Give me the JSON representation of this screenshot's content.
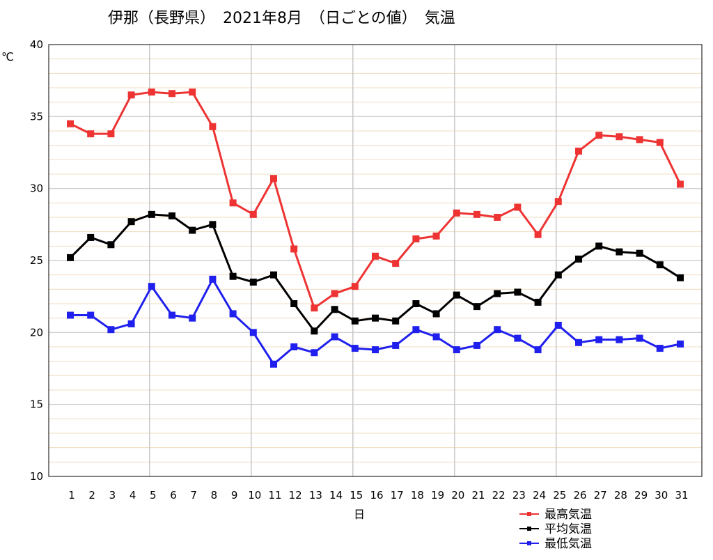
{
  "chart_data": {
    "type": "line",
    "title": "伊那（長野県）　2021年8月　（日ごとの値）　気温",
    "xlabel": "日",
    "ylabel": "℃",
    "ylim": [
      10,
      40
    ],
    "yticks": [
      "10",
      "15",
      "20",
      "25",
      "30",
      "35",
      "40"
    ],
    "categories": [
      "1",
      "2",
      "3",
      "4",
      "5",
      "6",
      "7",
      "8",
      "9",
      "10",
      "11",
      "12",
      "13",
      "14",
      "15",
      "16",
      "17",
      "18",
      "19",
      "20",
      "21",
      "22",
      "23",
      "24",
      "25",
      "26",
      "27",
      "28",
      "29",
      "30",
      "31"
    ],
    "grid": true,
    "legend_position": "bottom-right",
    "series": [
      {
        "name": "最高気温",
        "color": "#ee3333",
        "values": [
          34.5,
          33.8,
          33.8,
          36.5,
          36.7,
          36.6,
          36.7,
          34.3,
          29.0,
          28.2,
          30.7,
          25.8,
          21.7,
          22.7,
          23.2,
          25.3,
          24.8,
          26.5,
          26.7,
          28.3,
          28.2,
          28.0,
          28.7,
          26.8,
          29.1,
          32.6,
          33.7,
          33.6,
          33.4,
          33.2,
          30.3
        ]
      },
      {
        "name": "平均気温",
        "color": "#000000",
        "values": [
          25.2,
          26.6,
          26.1,
          27.7,
          28.2,
          28.1,
          27.1,
          27.5,
          23.9,
          23.5,
          24.0,
          22.0,
          20.1,
          21.6,
          20.8,
          21.0,
          20.8,
          22.0,
          21.3,
          22.6,
          21.8,
          22.7,
          22.8,
          22.1,
          24.0,
          25.1,
          26.0,
          25.6,
          25.5,
          24.7,
          23.8
        ]
      },
      {
        "name": "最低気温",
        "color": "#2020ee",
        "values": [
          21.2,
          21.2,
          20.2,
          20.6,
          23.2,
          21.2,
          21.0,
          23.7,
          21.3,
          20.0,
          17.8,
          19.0,
          18.6,
          19.7,
          18.9,
          18.8,
          19.1,
          20.2,
          19.7,
          18.8,
          19.1,
          20.2,
          19.6,
          18.8,
          20.5,
          19.3,
          19.5,
          19.5,
          19.6,
          18.9,
          19.2
        ]
      }
    ]
  }
}
